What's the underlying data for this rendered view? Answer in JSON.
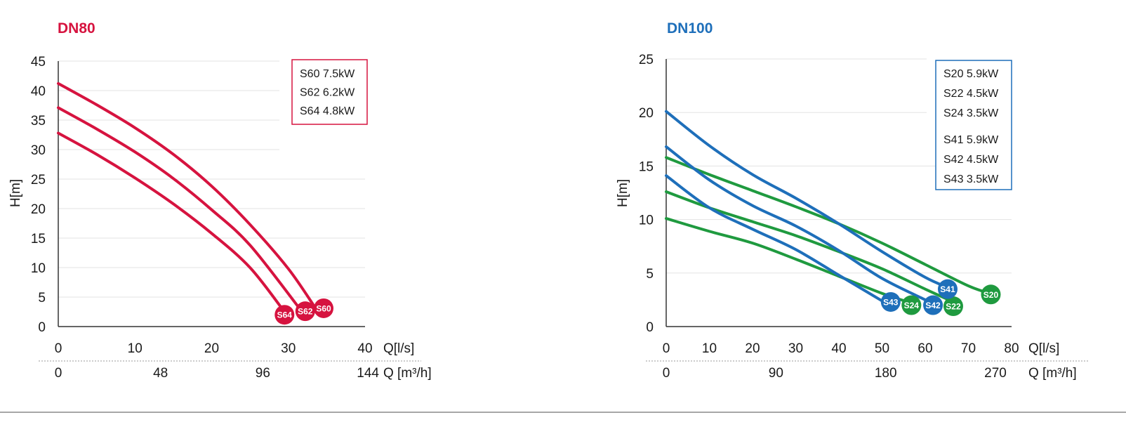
{
  "charts": [
    {
      "title": "DN80",
      "title_color": "#d6133f",
      "ylabel": "H[m]",
      "xlabel": "Q[l/s]",
      "x2label": "Q [m³/h]",
      "yticks": [
        "0",
        "5",
        "10",
        "15",
        "20",
        "25",
        "30",
        "35",
        "40",
        "45"
      ],
      "xticks": [
        "0",
        "10",
        "20",
        "30",
        "40"
      ],
      "x2ticks": [
        "0",
        "48",
        "96",
        "144"
      ],
      "legend": [
        "S60 7.5kW",
        "S62 6.2kW",
        "S64 4.8kW"
      ],
      "legend_border": "#d6133f",
      "badges": [
        "S64",
        "S62",
        "S60"
      ]
    },
    {
      "title": "DN100",
      "title_color": "#1e6fba",
      "ylabel": "H[m]",
      "xlabel": "Q[l/s]",
      "x2label": "Q [m³/h]",
      "yticks": [
        "0",
        "5",
        "10",
        "15",
        "20",
        "25"
      ],
      "xticks": [
        "0",
        "10",
        "20",
        "30",
        "40",
        "50",
        "60",
        "70",
        "80"
      ],
      "x2ticks": [
        "0",
        "90",
        "180",
        "270"
      ],
      "legend": [
        "S20 5.9kW",
        "S22 4.5kW",
        "S24 3.5kW",
        "S41 5.9kW",
        "S42 4.5kW",
        "S43 3.5kW"
      ],
      "legend_border": "#1e6fba",
      "badges": [
        "S43",
        "S24",
        "S42",
        "S22",
        "S41",
        "S20"
      ]
    }
  ],
  "chart_data": [
    {
      "type": "line",
      "title": "DN80",
      "xlabel": "Q[l/s]",
      "x2label": "Q [m³/h]",
      "ylabel": "H[m]",
      "xlim": [
        0,
        40
      ],
      "ylim": [
        0,
        45
      ],
      "x2_ticks": [
        0,
        48,
        96,
        144
      ],
      "grid": true,
      "legend_position": "top-right",
      "series": [
        {
          "name": "S60",
          "power": "7.5kW",
          "color": "#d6133f",
          "x": [
            0,
            5,
            10,
            15,
            20,
            25,
            30,
            33.5
          ],
          "y": [
            41.2,
            37.6,
            33.7,
            29.2,
            23.8,
            17.3,
            9.8,
            3.2
          ]
        },
        {
          "name": "S62",
          "power": "6.2kW",
          "color": "#d6133f",
          "x": [
            0,
            5,
            10,
            15,
            20,
            25,
            31.5
          ],
          "y": [
            37.1,
            33.5,
            29.6,
            25.1,
            19.8,
            13.8,
            3.0
          ]
        },
        {
          "name": "S64",
          "power": "4.8kW",
          "color": "#d6133f",
          "x": [
            0,
            5,
            10,
            15,
            20,
            25,
            29.5
          ],
          "y": [
            32.8,
            29.2,
            25.2,
            20.8,
            15.8,
            10.0,
            2.5
          ]
        }
      ],
      "badges": [
        {
          "label": "S64",
          "x": 29.5,
          "y": 2.0
        },
        {
          "label": "S62",
          "x": 32.2,
          "y": 2.6
        },
        {
          "label": "S60",
          "x": 34.6,
          "y": 3.1
        }
      ]
    },
    {
      "type": "line",
      "title": "DN100",
      "xlabel": "Q[l/s]",
      "x2label": "Q [m³/h]",
      "ylabel": "H[m]",
      "xlim": [
        0,
        80
      ],
      "ylim": [
        0,
        25
      ],
      "x2_ticks": [
        0,
        90,
        180,
        270
      ],
      "grid": true,
      "legend_position": "top-right",
      "series": [
        {
          "name": "S20",
          "power": "5.9kW",
          "color": "#1f9a3f",
          "x": [
            0,
            10,
            20,
            30,
            40,
            50,
            60,
            70,
            75
          ],
          "y": [
            15.8,
            14.2,
            12.7,
            11.2,
            9.6,
            7.8,
            5.8,
            3.8,
            3.1
          ]
        },
        {
          "name": "S22",
          "power": "4.5kW",
          "color": "#1f9a3f",
          "x": [
            0,
            10,
            20,
            30,
            40,
            50,
            60,
            66
          ],
          "y": [
            12.6,
            11.1,
            9.8,
            8.5,
            7.0,
            5.4,
            3.5,
            2.4
          ]
        },
        {
          "name": "S24",
          "power": "3.5kW",
          "color": "#1f9a3f",
          "x": [
            0,
            10,
            20,
            30,
            40,
            50,
            56
          ],
          "y": [
            10.1,
            8.9,
            7.8,
            6.3,
            4.7,
            3.1,
            2.3
          ]
        },
        {
          "name": "S41",
          "power": "5.9kW",
          "color": "#1e6fba",
          "x": [
            0,
            10,
            20,
            30,
            40,
            50,
            60,
            65
          ],
          "y": [
            20.1,
            16.9,
            14.2,
            12.0,
            9.6,
            7.0,
            4.6,
            3.7
          ]
        },
        {
          "name": "S42",
          "power": "4.5kW",
          "color": "#1e6fba",
          "x": [
            0,
            10,
            20,
            30,
            40,
            50,
            60
          ],
          "y": [
            16.8,
            13.7,
            11.3,
            9.4,
            7.1,
            4.5,
            2.5
          ]
        },
        {
          "name": "S43",
          "power": "3.5kW",
          "color": "#1e6fba",
          "x": [
            0,
            10,
            20,
            30,
            40,
            50
          ],
          "y": [
            14.1,
            11.1,
            9.1,
            7.2,
            4.8,
            2.4
          ]
        }
      ],
      "badges": [
        {
          "label": "S43",
          "x": 52,
          "y": 2.3
        },
        {
          "label": "S24",
          "x": 56.8,
          "y": 2.0
        },
        {
          "label": "S42",
          "x": 61.8,
          "y": 2.0
        },
        {
          "label": "S22",
          "x": 66.5,
          "y": 1.9
        },
        {
          "label": "S41",
          "x": 65.2,
          "y": 3.5
        },
        {
          "label": "S20",
          "x": 75.2,
          "y": 3.0
        }
      ]
    }
  ]
}
